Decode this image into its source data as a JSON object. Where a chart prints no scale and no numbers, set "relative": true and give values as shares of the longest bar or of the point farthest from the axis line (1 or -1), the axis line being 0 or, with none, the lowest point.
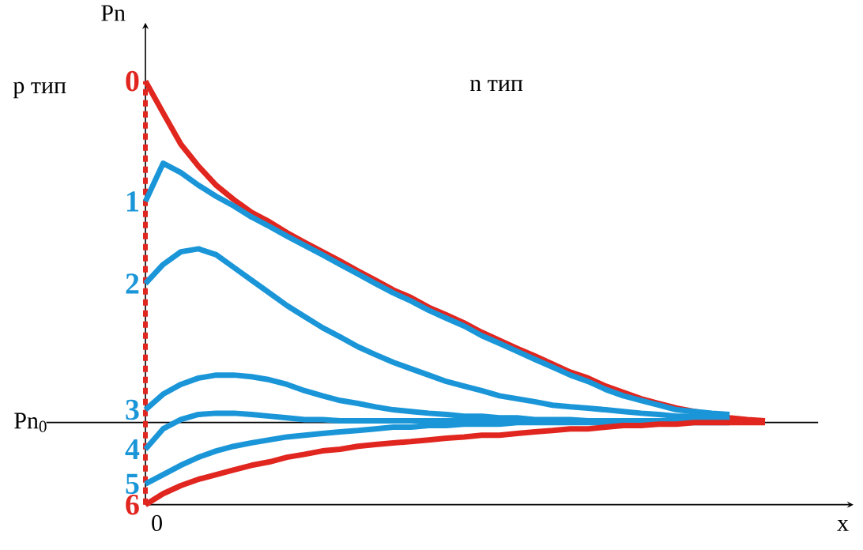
{
  "chart_data": {
    "type": "line",
    "relative": true,
    "xlabel": "x",
    "ylabel": "Pn",
    "categories": [
      null,
      null,
      null,
      null,
      null,
      null,
      null,
      null,
      null,
      null,
      null,
      null,
      null,
      null,
      null,
      null,
      null,
      null,
      null,
      null,
      null,
      null,
      null,
      null,
      null,
      null,
      null,
      null,
      null,
      null,
      null,
      null,
      null,
      null,
      null,
      null
    ],
    "annotations": [
      "p тип",
      "n тип",
      "0"
    ],
    "ref_lines": [
      {
        "axis": "y",
        "value": 0.194,
        "label": "Pn$_{0}$",
        "color": "#000000",
        "line_style": "solid"
      }
    ],
    "series": [
      {
        "name": "0",
        "color": "#e0261f",
        "values": [
          1.0,
          0.925,
          0.851,
          0.799,
          0.754,
          0.72,
          0.69,
          0.668,
          0.642,
          0.619,
          0.597,
          0.575,
          0.552,
          0.53,
          0.507,
          0.489,
          0.466,
          0.448,
          0.429,
          0.407,
          0.388,
          0.369,
          0.351,
          0.332,
          0.313,
          0.299,
          0.28,
          0.265,
          0.25,
          0.239,
          0.228,
          0.22,
          0.213,
          0.205,
          0.201,
          0.198
        ]
      },
      {
        "name": "1",
        "color": "#1a96d8",
        "values": [
          0.716,
          0.806,
          0.784,
          0.754,
          0.728,
          0.705,
          0.679,
          0.657,
          0.634,
          0.612,
          0.59,
          0.567,
          0.545,
          0.522,
          0.5,
          0.481,
          0.459,
          0.44,
          0.422,
          0.399,
          0.381,
          0.362,
          0.343,
          0.325,
          0.306,
          0.291,
          0.272,
          0.257,
          0.246,
          0.235,
          0.224,
          0.22,
          0.216,
          0.213,
          null,
          null
        ]
      },
      {
        "name": "2",
        "color": "#1a96d8",
        "values": [
          0.522,
          0.567,
          0.597,
          0.604,
          0.59,
          0.56,
          0.53,
          0.5,
          0.47,
          0.444,
          0.418,
          0.396,
          0.373,
          0.354,
          0.336,
          0.321,
          0.306,
          0.291,
          0.28,
          0.269,
          0.257,
          0.25,
          0.243,
          0.235,
          0.231,
          0.228,
          0.224,
          0.22,
          0.216,
          0.213,
          0.209,
          0.209,
          0.205,
          0.205,
          null,
          null
        ]
      },
      {
        "name": "3",
        "color": "#1a96d8",
        "values": [
          0.224,
          0.261,
          0.284,
          0.299,
          0.306,
          0.306,
          0.302,
          0.295,
          0.284,
          0.269,
          0.257,
          0.246,
          0.239,
          0.231,
          0.224,
          0.22,
          0.216,
          0.213,
          0.209,
          0.209,
          0.205,
          0.205,
          0.201,
          0.201,
          0.201,
          0.198,
          0.198,
          0.198,
          0.198,
          0.198,
          0.198,
          0.198,
          0.198,
          0.198,
          null,
          null
        ]
      },
      {
        "name": "4",
        "color": "#1a96d8",
        "values": [
          0.131,
          0.179,
          0.201,
          0.213,
          0.216,
          0.216,
          0.213,
          0.209,
          0.205,
          0.201,
          0.201,
          0.198,
          0.198,
          0.198,
          0.198,
          0.198,
          0.198,
          0.198,
          0.198,
          0.198,
          0.198,
          0.198,
          0.198,
          0.198,
          0.198,
          0.198,
          0.198,
          0.198,
          0.198,
          0.198,
          0.198,
          0.198,
          0.198,
          0.198,
          null,
          null
        ]
      },
      {
        "name": "5",
        "color": "#1a96d8",
        "values": [
          0.049,
          0.071,
          0.093,
          0.112,
          0.127,
          0.138,
          0.146,
          0.153,
          0.16,
          0.164,
          0.168,
          0.172,
          0.175,
          0.179,
          0.183,
          0.183,
          0.187,
          0.187,
          0.19,
          0.19,
          0.19,
          0.194,
          0.194,
          0.194,
          0.194,
          0.194,
          0.194,
          0.194,
          0.194,
          0.194,
          0.194,
          0.194,
          0.194,
          0.194,
          null,
          null
        ]
      },
      {
        "name": "6",
        "color": "#e0261f",
        "values": [
          0,
          0.026,
          0.045,
          0.06,
          0.071,
          0.082,
          0.093,
          0.101,
          0.112,
          0.119,
          0.127,
          0.131,
          0.138,
          0.142,
          0.146,
          0.149,
          0.153,
          0.157,
          0.16,
          0.164,
          0.164,
          0.168,
          0.172,
          0.175,
          0.179,
          0.179,
          0.183,
          0.187,
          0.187,
          0.19,
          0.19,
          0.194,
          0.194,
          0.194,
          0.194,
          0.194
        ]
      }
    ]
  }
}
